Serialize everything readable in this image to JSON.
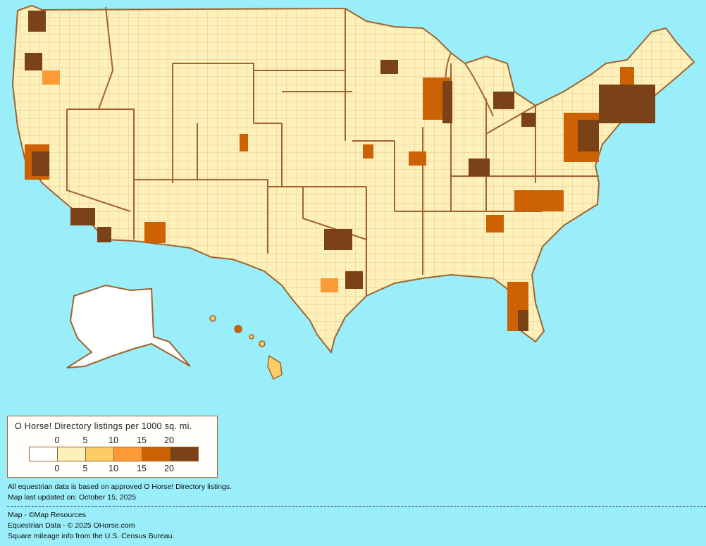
{
  "legend": {
    "title": "O Horse! Directory listings per 1000 sq. mi.",
    "ticks": [
      "0",
      "5",
      "10",
      "15",
      "20"
    ],
    "colors": [
      "#ffffff",
      "#fdf0b9",
      "#fdcc66",
      "#fb9a36",
      "#cc6204",
      "#7b4217"
    ]
  },
  "notes": {
    "basis": "All equestrian data is based on approved O Horse! Directory listings.",
    "updated": "Map last updated on: October 15, 2025",
    "credit_map": "Map - ©Map Resources",
    "credit_data": "Equestrian Data - © 2025 OHorse.com",
    "credit_census": "Square mileage info from the U.S. Census Bureau."
  },
  "colors": {
    "background": "#99eefa",
    "border": "#a0622d",
    "water_lakes": "#99eefa"
  }
}
